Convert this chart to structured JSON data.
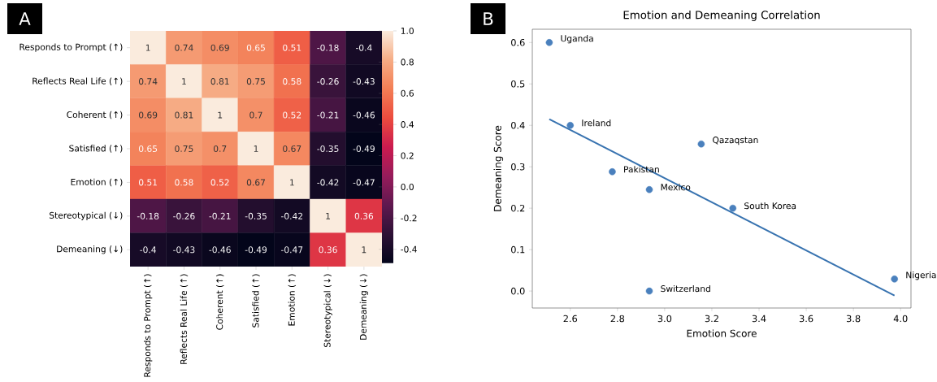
{
  "chart_data": [
    {
      "type": "heatmap",
      "annotations": [
        "A"
      ],
      "categories": [
        "Responds to Prompt (↑)",
        "Reflects Real Life (↑)",
        "Coherent (↑)",
        "Satisfied (↑)",
        "Emotion (↑)",
        "Stereotypical (↓)",
        "Demeaning (↓)"
      ],
      "y_categories": [
        "Responds to Prompt (↑)",
        "Reflects Real Life (↑)",
        "Coherent (↑)",
        "Satisfied (↑)",
        "Emotion (↑)",
        "Stereotypical (↓)",
        "Demeaning (↓)"
      ],
      "cells": [
        [
          1,
          0.74,
          0.69,
          0.65,
          0.51,
          -0.18,
          -0.4
        ],
        [
          0.74,
          1,
          0.81,
          0.75,
          0.58,
          -0.26,
          -0.43
        ],
        [
          0.69,
          0.81,
          1,
          0.7,
          0.52,
          -0.21,
          -0.46
        ],
        [
          0.65,
          0.75,
          0.7,
          1,
          0.67,
          -0.35,
          -0.49
        ],
        [
          0.51,
          0.58,
          0.52,
          0.67,
          1,
          -0.42,
          -0.47
        ],
        [
          -0.18,
          -0.26,
          -0.21,
          -0.35,
          -0.42,
          1,
          0.36
        ],
        [
          -0.4,
          -0.43,
          -0.46,
          -0.49,
          -0.47,
          0.36,
          1
        ]
      ],
      "data_labels": true,
      "clim": [
        -0.49,
        1
      ],
      "cticks": [
        {
          "value": -0.4,
          "label": "-0.4"
        },
        {
          "value": -0.2,
          "label": "-0.2"
        },
        {
          "value": 0,
          "label": "0.0"
        },
        {
          "value": 0.2,
          "label": "0.2"
        },
        {
          "value": 0.4,
          "label": "0.4"
        },
        {
          "value": 0.6,
          "label": "0.6"
        },
        {
          "value": 0.8,
          "label": "0.8"
        },
        {
          "value": 1,
          "label": "1.0"
        }
      ]
    },
    {
      "type": "scatter",
      "title": "Emotion and Demeaning Correlation",
      "xlabel": "Emotion Score",
      "ylabel": "Demeaning Score",
      "annotations": [
        "B",
        {
          "text": "Uganda",
          "x": 2.511,
          "y": 0.6
        },
        {
          "text": "Ireland",
          "x": 2.6,
          "y": 0.4
        },
        {
          "text": "Qazaqstan",
          "x": 3.155,
          "y": 0.355
        },
        {
          "text": "Pakistan",
          "x": 2.778,
          "y": 0.288
        },
        {
          "text": "Mexico",
          "x": 2.935,
          "y": 0.245
        },
        {
          "text": "South Korea",
          "x": 3.289,
          "y": 0.2
        },
        {
          "text": "Nigeria",
          "x": 3.974,
          "y": 0.029
        },
        {
          "text": "Switzerland",
          "x": 2.935,
          "y": 0
        }
      ],
      "series": [
        {
          "type": "scatter",
          "marker": "circle",
          "color": "#4a80bd",
          "x": [
            2.511,
            2.6,
            3.155,
            2.778,
            2.935,
            3.289,
            3.974,
            2.935
          ],
          "values": [
            0.6,
            0.4,
            0.355,
            0.288,
            0.245,
            0.2,
            0.029,
            0
          ]
        },
        {
          "type": "line",
          "line_style": "solid",
          "color": "#3873b0",
          "x": [
            2.511,
            3.974
          ],
          "values": [
            0.415,
            -0.011
          ]
        }
      ],
      "xlim": [
        2.439,
        4.044
      ],
      "ylim": [
        -0.041,
        0.632
      ],
      "xticks": [
        {
          "value": 2.6,
          "label": "2.6"
        },
        {
          "value": 2.8,
          "label": "2.8"
        },
        {
          "value": 3.0,
          "label": "3.0"
        },
        {
          "value": 3.2,
          "label": "3.2"
        },
        {
          "value": 3.4,
          "label": "3.4"
        },
        {
          "value": 3.6,
          "label": "3.6"
        },
        {
          "value": 3.8,
          "label": "3.8"
        },
        {
          "value": 4.0,
          "label": "4.0"
        }
      ],
      "yticks": [
        {
          "value": 0,
          "label": "0.0"
        },
        {
          "value": 0.1,
          "label": "0.1"
        },
        {
          "value": 0.2,
          "label": "0.2"
        },
        {
          "value": 0.3,
          "label": "0.3"
        },
        {
          "value": 0.4,
          "label": "0.4"
        },
        {
          "value": 0.5,
          "label": "0.5"
        },
        {
          "value": 0.6,
          "label": "0.6"
        }
      ]
    }
  ]
}
